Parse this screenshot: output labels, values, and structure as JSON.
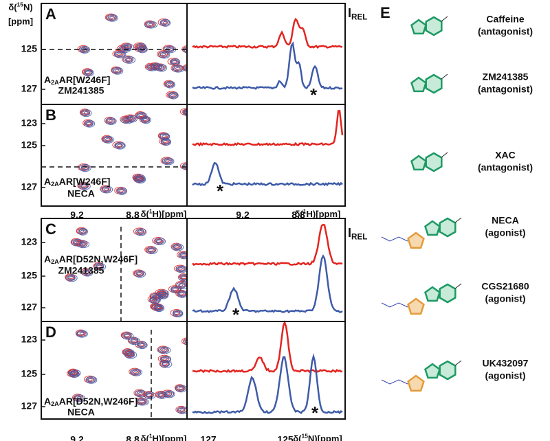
{
  "y_axis": {
    "pre": "δ(",
    "sup": "15",
    "post": "N)",
    "unit": "[ppm]"
  },
  "i_rel": {
    "main": "I",
    "sub": "REL"
  },
  "asterisk": "*",
  "panels": [
    {
      "letter": "A",
      "sample": {
        "pre": "A",
        "sub": "2A",
        "post": "AR[W246F]"
      },
      "ligand": "ZM241385",
      "y_ticks": [
        "125",
        "127"
      ]
    },
    {
      "letter": "B",
      "sample": {
        "pre": "A",
        "sub": "2A",
        "post": "AR[W246F]"
      },
      "ligand": "NECA",
      "y_ticks": [
        "123",
        "125",
        "127"
      ]
    },
    {
      "letter": "C",
      "sample": {
        "pre": "A",
        "sub": "2A",
        "post": "AR[D52N,W246F]"
      },
      "ligand": "ZM241385",
      "y_ticks": [
        "123",
        "125",
        "127"
      ]
    },
    {
      "letter": "D",
      "sample": {
        "pre": "A",
        "sub": "2A",
        "post": "AR[D52N,W246F]"
      },
      "ligand": "NECA",
      "y_ticks": [
        "123",
        "125",
        "127"
      ]
    }
  ],
  "x_axes": [
    {
      "left_ticks": [
        "9.2",
        "8.8"
      ],
      "left_label": {
        "pre": "δ(",
        "sup": "1",
        "post": "H)[ppm]"
      },
      "right_ticks": [
        "9.2",
        "8.8"
      ],
      "right_label": {
        "pre": "δ(",
        "sup": "1",
        "post": "H)[ppm]"
      }
    },
    {
      "left_ticks": [
        "9.2",
        "8.8"
      ],
      "left_label": {
        "pre": "δ(",
        "sup": "1",
        "post": "H)[ppm]"
      },
      "right_ticks": [
        "127",
        "125"
      ],
      "right_label": {
        "pre": "δ(",
        "sup": "15",
        "post": "N)[ppm]"
      }
    }
  ],
  "section_e": {
    "letter": "E",
    "compounds": [
      {
        "name": "Caffeine",
        "role": "(antagonist)"
      },
      {
        "name": "ZM241385",
        "role": "(antagonist)"
      },
      {
        "name": "XAC",
        "role": "(antagonist)"
      },
      {
        "name": "NECA",
        "role": "(agonist)"
      },
      {
        "name": "CGS21680",
        "role": "(agonist)"
      },
      {
        "name": "UK432097",
        "role": "(agonist)"
      }
    ]
  }
}
